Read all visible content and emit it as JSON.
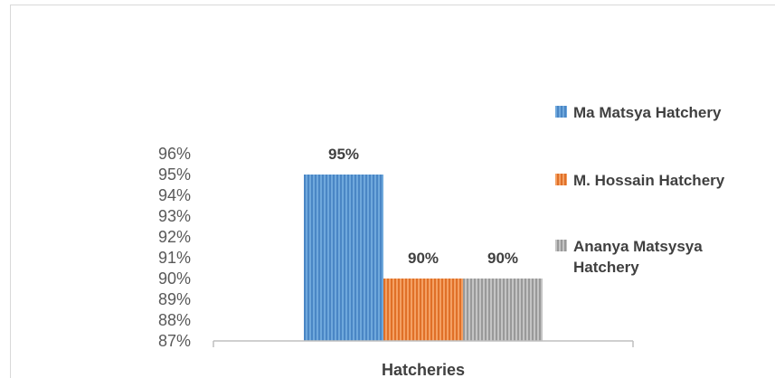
{
  "chart_data": {
    "type": "bar",
    "categories": [
      "Hatcheries"
    ],
    "xlabel": "Hatcheries",
    "ylabel": "",
    "title": "",
    "ylim": [
      0.87,
      0.96
    ],
    "yticks": [
      "96%",
      "95%",
      "94%",
      "93%",
      "92%",
      "91%",
      "90%",
      "89%",
      "88%",
      "87%"
    ],
    "legend_position": "right",
    "grid": false,
    "series": [
      {
        "name": "Ma Matsya Hatchery",
        "values": [
          0.95
        ],
        "label": "95%",
        "color": "#5b9bd5",
        "legend_lines": [
          "Ma Matsya Hatchery"
        ]
      },
      {
        "name": "M. Hossain Hatchery",
        "values": [
          0.9
        ],
        "label": "90%",
        "color": "#ed7d31",
        "legend_lines": [
          "M. Hossain Hatchery"
        ]
      },
      {
        "name": "Ananya Matsysya Hatchery",
        "values": [
          0.9
        ],
        "label": "90%",
        "color": "#a5a5a5",
        "legend_lines": [
          "Ananya Matsysya",
          "Hatchery"
        ]
      }
    ]
  }
}
